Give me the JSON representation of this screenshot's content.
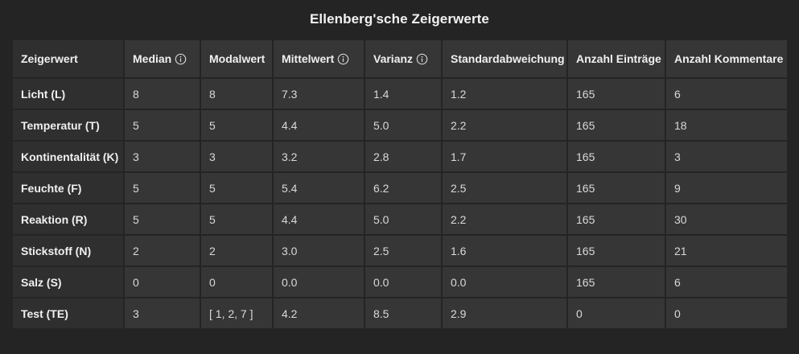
{
  "title": "Ellenberg'sche Zeigerwerte",
  "table": {
    "columns": [
      {
        "label": "Zeigerwert",
        "info": false
      },
      {
        "label": "Median",
        "info": true
      },
      {
        "label": "Modalwert",
        "info": false
      },
      {
        "label": "Mittelwert",
        "info": true
      },
      {
        "label": "Varianz",
        "info": true
      },
      {
        "label": "Standardabweichung",
        "info": false
      },
      {
        "label": "Anzahl Einträge",
        "info": false
      },
      {
        "label": "Anzahl Kommentare",
        "info": false
      }
    ],
    "rows": [
      [
        "Licht (L)",
        "8",
        "8",
        "7.3",
        "1.4",
        "1.2",
        "165",
        "6"
      ],
      [
        "Temperatur (T)",
        "5",
        "5",
        "4.4",
        "5.0",
        "2.2",
        "165",
        "18"
      ],
      [
        "Kontinentalität (K)",
        "3",
        "3",
        "3.2",
        "2.8",
        "1.7",
        "165",
        "3"
      ],
      [
        "Feuchte (F)",
        "5",
        "5",
        "5.4",
        "6.2",
        "2.5",
        "165",
        "9"
      ],
      [
        "Reaktion (R)",
        "5",
        "5",
        "4.4",
        "5.0",
        "2.2",
        "165",
        "30"
      ],
      [
        "Stickstoff (N)",
        "2",
        "2",
        "3.0",
        "2.5",
        "1.6",
        "165",
        "21"
      ],
      [
        "Salz (S)",
        "0",
        "0",
        "0.0",
        "0.0",
        "0.0",
        "165",
        "6"
      ],
      [
        "Test (TE)",
        "3",
        "[ 1, 2, 7 ]",
        "4.2",
        "8.5",
        "2.9",
        "0",
        "0"
      ]
    ]
  },
  "colors": {
    "background": "#242424",
    "cell": "#363636",
    "row_header": "#2f2f2f",
    "text": "#d9d9d9"
  },
  "icons": {
    "info": "info-circle-icon"
  }
}
